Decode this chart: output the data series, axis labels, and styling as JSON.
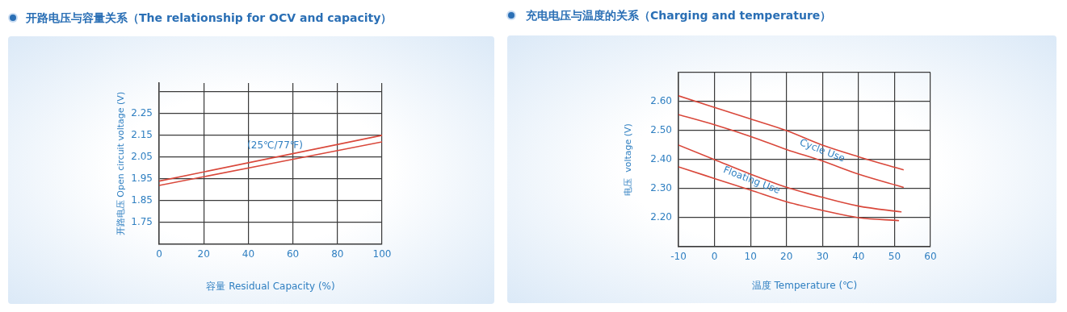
{
  "chart_data": [
    {
      "type": "line",
      "title": "开路电压与容量关系（The relationship for OCV and capacity）",
      "xlabel": "容量 Residual Capacity (%)",
      "ylabel": "开路电压 Open circuit voltage (V)",
      "series": [
        {
          "color": "#d9473a",
          "x": [
            0,
            100
          ],
          "values": [
            1.94,
            2.15
          ]
        },
        {
          "color": "#d9473a",
          "x": [
            0,
            100
          ],
          "values": [
            1.92,
            2.12
          ]
        }
      ],
      "xlim": [
        0,
        100
      ],
      "xticks": [
        0,
        20,
        40,
        60,
        80,
        100
      ],
      "ylim": [
        1.65,
        2.39
      ],
      "yticks": [
        1.75,
        1.85,
        1.95,
        2.05,
        2.15,
        2.25,
        {
          "value": 2.35,
          "label": null
        }
      ],
      "annotations": [
        "(25℃/77℉)"
      ],
      "grid": true,
      "legend": false,
      "marker": "none",
      "line_style": "solid"
    },
    {
      "type": "line",
      "title": "充电电压与温度的关系（Charging and temperature）",
      "xlabel": "温度 Temperature (℃)",
      "ylabel": "电压  voltage (V)",
      "series": [
        {
          "color": "#d9473a",
          "x": [
            -10,
            0,
            10,
            20,
            30,
            40,
            52.4
          ],
          "values": [
            2.62,
            2.58,
            2.54,
            2.5,
            2.45,
            2.41,
            2.365
          ]
        },
        {
          "color": "#d9473a",
          "x": [
            -10,
            0,
            10,
            20,
            30,
            40,
            52.4
          ],
          "values": [
            2.555,
            2.52,
            2.48,
            2.435,
            2.395,
            2.35,
            2.305
          ]
        },
        {
          "color": "#d9473a",
          "x": [
            -10,
            0,
            10,
            20,
            30,
            40,
            51.8
          ],
          "values": [
            2.45,
            2.4,
            2.35,
            2.305,
            2.27,
            2.24,
            2.22
          ]
        },
        {
          "color": "#d9473a",
          "x": [
            -10,
            0,
            10,
            20,
            30,
            40,
            51.1
          ],
          "values": [
            2.375,
            2.335,
            2.295,
            2.255,
            2.225,
            2.2,
            2.19
          ]
        }
      ],
      "xlim": [
        -10,
        60
      ],
      "xticks": [
        -10,
        0,
        10,
        20,
        30,
        40,
        50,
        60
      ],
      "ylim": [
        2.1,
        2.7
      ],
      "yticks": [
        {
          "value": 2.1,
          "label": null
        },
        {
          "value": 2.2,
          "label": "2.20"
        },
        {
          "value": 2.3,
          "label": "2.30"
        },
        {
          "value": 2.4,
          "label": "2.40"
        },
        {
          "value": 2.5,
          "label": "2.50"
        },
        {
          "value": 2.6,
          "label": "2.60"
        },
        {
          "value": 2.7,
          "label": null
        }
      ],
      "annotations": [
        "Cycle Use",
        "Floating Use"
      ],
      "grid": true,
      "legend": false,
      "marker": "none",
      "line_style": "solid"
    }
  ]
}
